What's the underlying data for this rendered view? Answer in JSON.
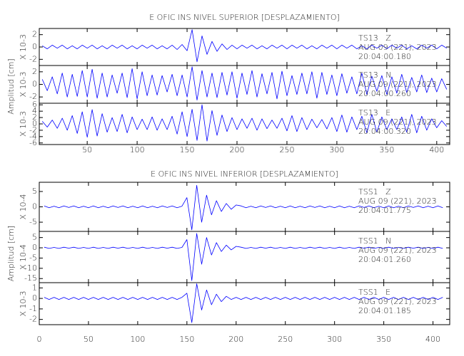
{
  "chart_data": [
    {
      "type": "line",
      "title": "E OFIC INS NIVEL SUPERIOR [DESPLAZAMIENTO]",
      "ylabel": "Amplitud [cm]",
      "x": [
        5,
        10,
        15,
        20,
        25,
        30,
        35,
        40,
        45,
        50,
        55,
        60,
        65,
        70,
        75,
        80,
        85,
        90,
        95,
        100,
        105,
        110,
        115,
        120,
        125,
        130,
        135,
        140,
        145,
        150,
        155,
        160,
        165,
        170,
        175,
        180,
        185,
        190,
        195,
        200,
        205,
        210,
        215,
        220,
        225,
        230,
        235,
        240,
        245,
        250,
        255,
        260,
        265,
        270,
        275,
        280,
        285,
        290,
        295,
        300,
        305,
        310,
        315,
        320,
        325,
        330,
        335,
        340,
        345,
        350,
        355,
        360,
        365,
        370,
        375,
        380,
        385,
        390,
        395,
        400,
        405,
        410
      ],
      "xlim": [
        2,
        413
      ],
      "xticks": [
        50,
        100,
        150,
        200,
        250,
        300,
        350,
        400
      ],
      "panels": [
        {
          "scale_label": "X 10-3",
          "annotation": [
            "TS13   Z",
            "AUG 09 (221), 2023",
            "20:04:00.180"
          ],
          "ylim": [
            -3,
            3
          ],
          "yticks": [
            -2,
            0,
            2
          ],
          "series": [
            {
              "color": "#0000ff",
              "values": [
                0.2,
                -0.3,
                0.3,
                -0.2,
                0.3,
                -0.3,
                0.2,
                -0.3,
                0.3,
                -0.2,
                0.3,
                -0.3,
                0.2,
                -0.3,
                0.3,
                -0.2,
                0.3,
                -0.3,
                0.2,
                -0.3,
                0.3,
                -0.2,
                0.3,
                -0.3,
                0.2,
                -0.3,
                0.3,
                -0.4,
                0.4,
                -0.6,
                2.8,
                -2.4,
                1.8,
                -1.2,
                0.9,
                -0.7,
                0.5,
                -0.4,
                0.3,
                -0.3,
                0.3,
                -0.2,
                0.3,
                -0.3,
                0.2,
                -0.3,
                0.3,
                -0.2,
                0.3,
                -0.3,
                0.3,
                -0.2,
                0.3,
                -0.3,
                0.2,
                -0.3,
                0.3,
                -0.2,
                0.3,
                -0.3,
                0.3,
                -0.2,
                0.3,
                -0.3,
                0.2,
                -0.3,
                0.3,
                -0.2,
                0.3,
                -0.3,
                0.3,
                -0.2,
                0.3,
                -0.3,
                0.2,
                -0.3,
                0.3,
                -0.2,
                0.3,
                -0.3,
                0.3,
                -0.2
              ]
            }
          ]
        },
        {
          "scale_label": "X 10-3",
          "annotation": [
            "TS13   N",
            "AUG 09 (221), 2023",
            "20:04:00.260"
          ],
          "ylim": [
            -3,
            3
          ],
          "yticks": [
            -2,
            0,
            2
          ],
          "series": [
            {
              "color": "#0000ff",
              "values": [
                0.8,
                -1.0,
                1.2,
                -1.5,
                1.8,
                -2.0,
                1.6,
                -1.9,
                2.2,
                -2.0,
                2.4,
                -2.2,
                1.8,
                -2.0,
                1.5,
                -1.4,
                1.8,
                -2.1,
                2.5,
                -2.3,
                2.0,
                -1.8,
                1.5,
                -1.7,
                1.4,
                -1.2,
                1.6,
                -1.8,
                1.5,
                -2.0,
                2.8,
                -2.5,
                2.2,
                -2.0,
                1.8,
                -2.1,
                1.9,
                -1.7,
                2.0,
                -2.2,
                1.8,
                -1.6,
                2.2,
                -2.0,
                1.7,
                -1.5,
                1.9,
                -2.3,
                2.1,
                -1.8,
                1.4,
                -1.6,
                1.8,
                -1.5,
                2.0,
                -2.2,
                1.9,
                -1.6,
                1.5,
                -1.8,
                1.7,
                -1.4,
                1.2,
                -1.5,
                1.8,
                -1.6,
                1.3,
                -1.1,
                1.4,
                -1.6,
                1.2,
                -1.4,
                1.6,
                -1.3,
                1.1,
                -1.2,
                1.5,
                -1.3,
                1.0,
                -1.2,
                0.9,
                -0.8
              ]
            }
          ]
        },
        {
          "scale_label": "X 10-3",
          "annotation": [
            "TS13   E",
            "AUG 09 (221), 2023",
            "20:04:00.320"
          ],
          "ylim": [
            -6.5,
            6.5
          ],
          "yticks": [
            -6,
            -4,
            -2,
            0,
            2,
            4,
            6
          ],
          "series": [
            {
              "color": "#0000ff",
              "values": [
                0.8,
                -1.0,
                1.2,
                -1.4,
                1.8,
                -2.0,
                2.6,
                -3.0,
                3.8,
                -4.2,
                4.5,
                -3.8,
                3.2,
                -2.6,
                2.0,
                -2.4,
                3.0,
                -2.8,
                2.2,
                -1.8,
                1.5,
                -1.8,
                2.2,
                -2.0,
                1.6,
                -1.8,
                2.4,
                -3.2,
                3.8,
                -4.0,
                4.6,
                -5.2,
                6.0,
                -5.4,
                4.2,
                -3.6,
                2.8,
                -2.4,
                2.0,
                -1.8,
                1.6,
                -1.4,
                1.8,
                -2.0,
                1.6,
                -1.5,
                1.2,
                -1.4,
                1.8,
                -2.2,
                2.6,
                -2.4,
                2.0,
                -1.8,
                1.5,
                -1.2,
                1.4,
                -1.6,
                2.0,
                -2.4,
                2.8,
                -2.6,
                2.2,
                -1.8,
                2.4,
                -2.8,
                3.0,
                -2.6,
                2.2,
                -1.8,
                1.6,
                -1.8,
                2.2,
                -2.6,
                3.0,
                -2.8,
                2.4,
                -2.0,
                1.6,
                -1.2,
                1.0,
                -0.8
              ]
            }
          ]
        }
      ]
    },
    {
      "type": "line",
      "title": "E OFIC INS NIVEL INFERIOR [DESPLAZAMIENTO]",
      "ylabel": "Amplitud [cm]",
      "x": [
        5,
        10,
        15,
        20,
        25,
        30,
        35,
        40,
        45,
        50,
        55,
        60,
        65,
        70,
        75,
        80,
        85,
        90,
        95,
        100,
        105,
        110,
        115,
        120,
        125,
        130,
        135,
        140,
        145,
        150,
        155,
        160,
        165,
        170,
        175,
        180,
        185,
        190,
        195,
        200,
        205,
        210,
        215,
        220,
        225,
        230,
        235,
        240,
        245,
        250,
        255,
        260,
        265,
        270,
        275,
        280,
        285,
        290,
        295,
        300,
        305,
        310,
        315,
        320,
        325,
        330,
        335,
        340,
        345,
        350,
        355,
        360,
        365,
        370,
        375,
        380,
        385,
        390,
        395,
        400,
        405,
        410
      ],
      "xlim": [
        0,
        417
      ],
      "xticks": [
        0,
        50,
        100,
        150,
        200,
        250,
        300,
        350,
        400
      ],
      "panels": [
        {
          "scale_label": "X 10-4",
          "annotation": [
            "TSS1   Z",
            "AUG 09 (221), 2023",
            "20:04:01.775"
          ],
          "ylim": [
            -8,
            8
          ],
          "yticks": [
            -5,
            0,
            5
          ],
          "series": [
            {
              "color": "#0000ff",
              "values": [
                0.3,
                -0.3,
                0.2,
                -0.3,
                0.3,
                -0.2,
                0.3,
                -0.3,
                0.2,
                -0.3,
                0.3,
                -0.3,
                0.2,
                -0.3,
                0.3,
                -0.2,
                0.3,
                -0.3,
                0.2,
                -0.3,
                0.3,
                -0.3,
                0.2,
                -0.3,
                0.3,
                -0.2,
                0.3,
                -0.3,
                0.2,
                3.0,
                -7.5,
                7.0,
                -5.0,
                3.8,
                -2.6,
                2.0,
                -1.5,
                1.1,
                -0.8,
                0.6,
                0.3,
                -0.3,
                0.2,
                -0.3,
                0.3,
                -0.2,
                0.3,
                -0.3,
                0.2,
                -0.3,
                0.3,
                -0.3,
                0.2,
                -0.3,
                0.3,
                -0.2,
                0.3,
                -0.3,
                0.2,
                -0.3,
                0.3,
                -0.3,
                0.2,
                -0.3,
                0.3,
                -0.2,
                0.3,
                -0.3,
                0.2,
                -0.3,
                0.3,
                -0.3,
                0.2,
                -0.3,
                0.3,
                -0.2,
                0.3,
                -0.3,
                0.2,
                -0.3,
                0.3,
                -0.3
              ]
            }
          ]
        },
        {
          "scale_label": "X 10-4",
          "annotation": [
            "TSS1   N",
            "AUG 09 (221), 2023",
            "20:04:01.260"
          ],
          "ylim": [
            -17,
            8
          ],
          "yticks": [
            -15,
            -10,
            -5,
            0,
            5
          ],
          "series": [
            {
              "color": "#0000ff",
              "values": [
                0.3,
                -0.3,
                0.2,
                -0.3,
                0.3,
                -0.2,
                0.3,
                -0.3,
                0.2,
                -0.3,
                0.3,
                -0.3,
                0.2,
                -0.3,
                0.3,
                -0.2,
                0.3,
                -0.3,
                0.2,
                -0.3,
                0.3,
                -0.3,
                0.2,
                -0.3,
                0.3,
                -0.2,
                0.3,
                -0.3,
                0.2,
                4.0,
                -16,
                7.0,
                -8.0,
                5.0,
                -3.5,
                2.5,
                -1.8,
                1.3,
                -1.0,
                0.7,
                0.3,
                -0.3,
                0.2,
                -0.3,
                0.3,
                -0.2,
                0.3,
                -0.3,
                0.2,
                -0.3,
                0.3,
                -0.3,
                0.2,
                -0.3,
                0.3,
                -0.2,
                0.3,
                -0.3,
                0.2,
                -0.3,
                0.3,
                -0.3,
                0.2,
                -0.3,
                0.3,
                -0.2,
                0.3,
                -0.3,
                0.2,
                -0.3,
                0.3,
                -0.3,
                0.2,
                -0.3,
                0.3,
                -0.2,
                0.3,
                -0.3,
                0.2,
                -0.3,
                0.3,
                -0.3
              ]
            }
          ]
        },
        {
          "scale_label": "X 10-3",
          "annotation": [
            "TSS1   E",
            "AUG 09 (221), 2023",
            "20:04:01.185"
          ],
          "ylim": [
            -2.5,
            1.5
          ],
          "yticks": [
            -2,
            -1,
            0,
            1
          ],
          "series": [
            {
              "color": "#0000ff",
              "values": [
                0.1,
                -0.1,
                0.1,
                -0.1,
                0.1,
                -0.1,
                0.1,
                -0.1,
                0.1,
                -0.1,
                0.1,
                -0.1,
                0.1,
                -0.1,
                0.1,
                -0.1,
                0.1,
                -0.1,
                0.1,
                -0.1,
                0.1,
                -0.1,
                0.1,
                -0.1,
                0.1,
                -0.1,
                0.1,
                -0.1,
                0.1,
                0.5,
                -2.3,
                1.4,
                -1.1,
                0.8,
                -0.6,
                0.4,
                -0.3,
                0.2,
                -0.1,
                0.1,
                -0.1,
                0.1,
                -0.1,
                0.1,
                -0.1,
                0.1,
                -0.1,
                0.1,
                -0.1,
                0.1,
                -0.1,
                0.1,
                -0.1,
                0.1,
                -0.1,
                0.1,
                -0.1,
                0.1,
                -0.1,
                0.1,
                -0.1,
                0.1,
                -0.1,
                0.1,
                -0.1,
                0.1,
                -0.1,
                0.1,
                -0.1,
                0.1,
                -0.1,
                0.1,
                -0.1,
                0.1,
                -0.1,
                0.1,
                -0.1,
                0.1,
                -0.1,
                0.1,
                -0.1,
                0.1
              ]
            }
          ]
        }
      ]
    }
  ]
}
